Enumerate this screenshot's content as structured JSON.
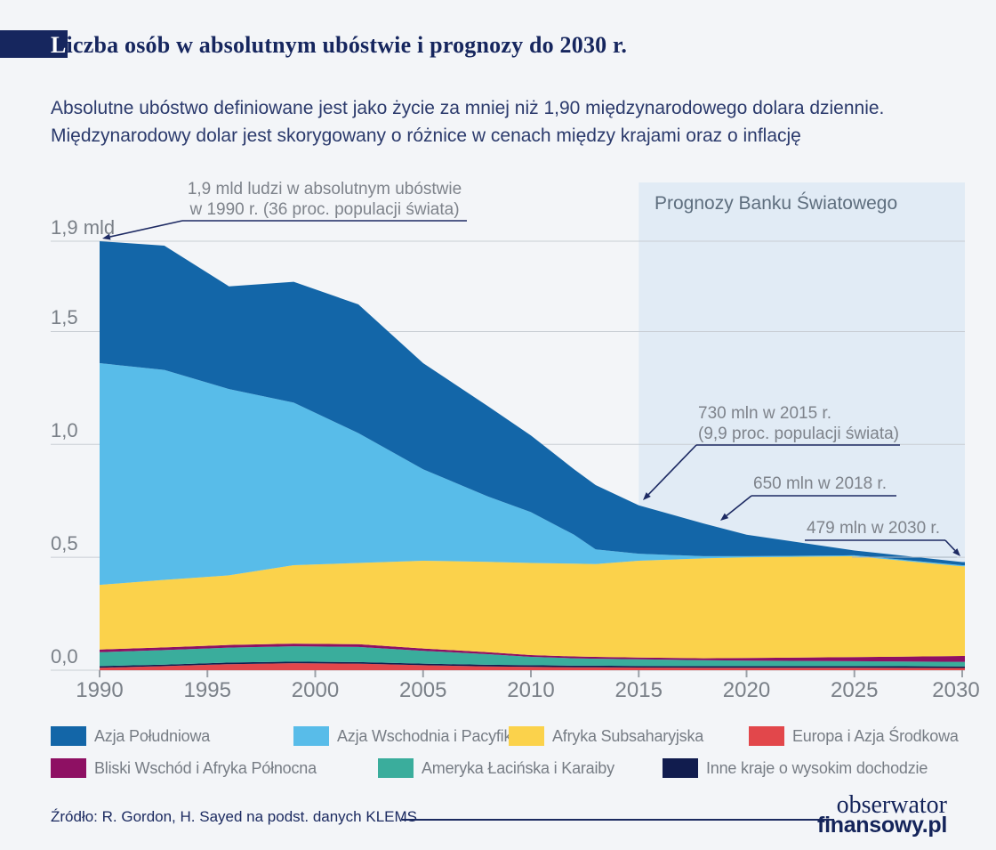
{
  "page": {
    "background": "#F3F5F8",
    "accent_navy": "#16265E"
  },
  "header": {
    "title": "Liczba osób w absolutnym ubóstwie i prognozy do 2030 r.",
    "subtitle_line1": "Absolutne ubóstwo definiowane jest jako życie za mniej niż 1,90 międzynarodowego dolara dziennie.",
    "subtitle_line2": "Międzynarodowy dolar jest skorygowany o różnice w cenach między krajami oraz o inflację"
  },
  "chart_data": {
    "type": "area",
    "stacked": true,
    "unit": "mld osób",
    "x": [
      1990,
      1993,
      1996,
      1999,
      2002,
      2005,
      2008,
      2010,
      2012,
      2013,
      2015,
      2018,
      2020,
      2025,
      2030
    ],
    "series": [
      {
        "name": "Europa i Azja Środkowa",
        "color": "#E2474B",
        "values": [
          0.011,
          0.018,
          0.027,
          0.031,
          0.029,
          0.022,
          0.017,
          0.015,
          0.013,
          0.013,
          0.012,
          0.011,
          0.011,
          0.011,
          0.01
        ]
      },
      {
        "name": "Inne kraje o wysokim dochodzie",
        "color": "#111C4E",
        "values": [
          0.007,
          0.007,
          0.007,
          0.007,
          0.007,
          0.007,
          0.007,
          0.007,
          0.007,
          0.007,
          0.007,
          0.007,
          0.007,
          0.007,
          0.007
        ]
      },
      {
        "name": "Ameryka Łacińska i Karaiby",
        "color": "#3AAD9C",
        "values": [
          0.062,
          0.064,
          0.066,
          0.068,
          0.067,
          0.057,
          0.047,
          0.037,
          0.033,
          0.031,
          0.029,
          0.026,
          0.024,
          0.022,
          0.02
        ]
      },
      {
        "name": "Bliski Wschód i Afryka Północna",
        "color": "#8E1063",
        "values": [
          0.012,
          0.012,
          0.012,
          0.012,
          0.012,
          0.01,
          0.009,
          0.008,
          0.008,
          0.008,
          0.008,
          0.009,
          0.012,
          0.018,
          0.026
        ]
      },
      {
        "name": "Afryka Subsaharyjska",
        "color": "#FBD24B",
        "values": [
          0.286,
          0.299,
          0.308,
          0.347,
          0.36,
          0.389,
          0.4,
          0.408,
          0.411,
          0.411,
          0.429,
          0.442,
          0.446,
          0.447,
          0.397
        ]
      },
      {
        "name": "Azja Wschodnia i Pacyfik",
        "color": "#58BCE9",
        "values": [
          0.982,
          0.93,
          0.825,
          0.72,
          0.575,
          0.405,
          0.29,
          0.225,
          0.128,
          0.065,
          0.031,
          0.01,
          0.005,
          0.004,
          0.005
        ]
      },
      {
        "name": "Azja Południowa",
        "color": "#1366A8",
        "values": [
          0.54,
          0.55,
          0.455,
          0.535,
          0.57,
          0.47,
          0.4,
          0.34,
          0.29,
          0.285,
          0.214,
          0.145,
          0.095,
          0.021,
          0.014
        ]
      }
    ],
    "totals_mld": {
      "1990": 1.9,
      "2015": 0.73,
      "2018": 0.65,
      "2030": 0.479
    },
    "ylim": [
      0,
      1.95
    ],
    "grid": true,
    "y_ticks": [
      {
        "label": "1,9 mld",
        "value": 1.9
      },
      {
        "label": "1,5",
        "value": 1.5
      },
      {
        "label": "1,0",
        "value": 1.0
      },
      {
        "label": "0,5",
        "value": 0.5
      },
      {
        "label": "0,0",
        "value": 0.0
      }
    ],
    "x_ticks": [
      "1990",
      "1995",
      "2000",
      "2005",
      "2010",
      "2015",
      "2020",
      "2025",
      "2030"
    ],
    "forecast_region": {
      "label": "Prognozy Banku Światowego",
      "start_year": 2015,
      "end_year": 2030,
      "color": "#E1EBF5"
    },
    "annotations": [
      {
        "id": "peak-1990",
        "line1": "1,9 mld ludzi w absolutnym ubóstwie",
        "line2": "w 1990 r. (36 proc. populacji świata)",
        "target_year": 1990,
        "target_value_mld": 1.9
      },
      {
        "id": "point-2015",
        "line1": "730 mln w 2015 r.",
        "line2": "(9,9 proc. populacji świata)",
        "target_year": 2015,
        "target_value_mld": 0.73
      },
      {
        "id": "point-2018",
        "line1": "650 mln w 2018 r.",
        "target_year": 2018,
        "target_value_mld": 0.65
      },
      {
        "id": "point-2030",
        "line1": "479 mln w 2030 r.",
        "target_year": 2030,
        "target_value_mld": 0.479
      }
    ],
    "legend_position": "bottom"
  },
  "legend": {
    "items": [
      {
        "label": "Azja Południowa",
        "color": "#1366A8"
      },
      {
        "label": "Azja Wschodnia i Pacyfik",
        "color": "#58BCE9"
      },
      {
        "label": "Afryka Subsaharyjska",
        "color": "#FBD24B"
      },
      {
        "label": "Europa i Azja Środkowa",
        "color": "#E2474B"
      },
      {
        "label": "Bliski Wschód i Afryka Północna",
        "color": "#8E1063"
      },
      {
        "label": "Ameryka Łacińska i Karaiby",
        "color": "#3AAD9C"
      },
      {
        "label": "Inne kraje o wysokim dochodzie",
        "color": "#111C4E"
      }
    ]
  },
  "footer": {
    "source": "Źródło: R. Gordon, H. Sayed na podst. danych KLEMS",
    "logo_line1": "obserwator",
    "logo_line2": "finansowy.pl"
  }
}
